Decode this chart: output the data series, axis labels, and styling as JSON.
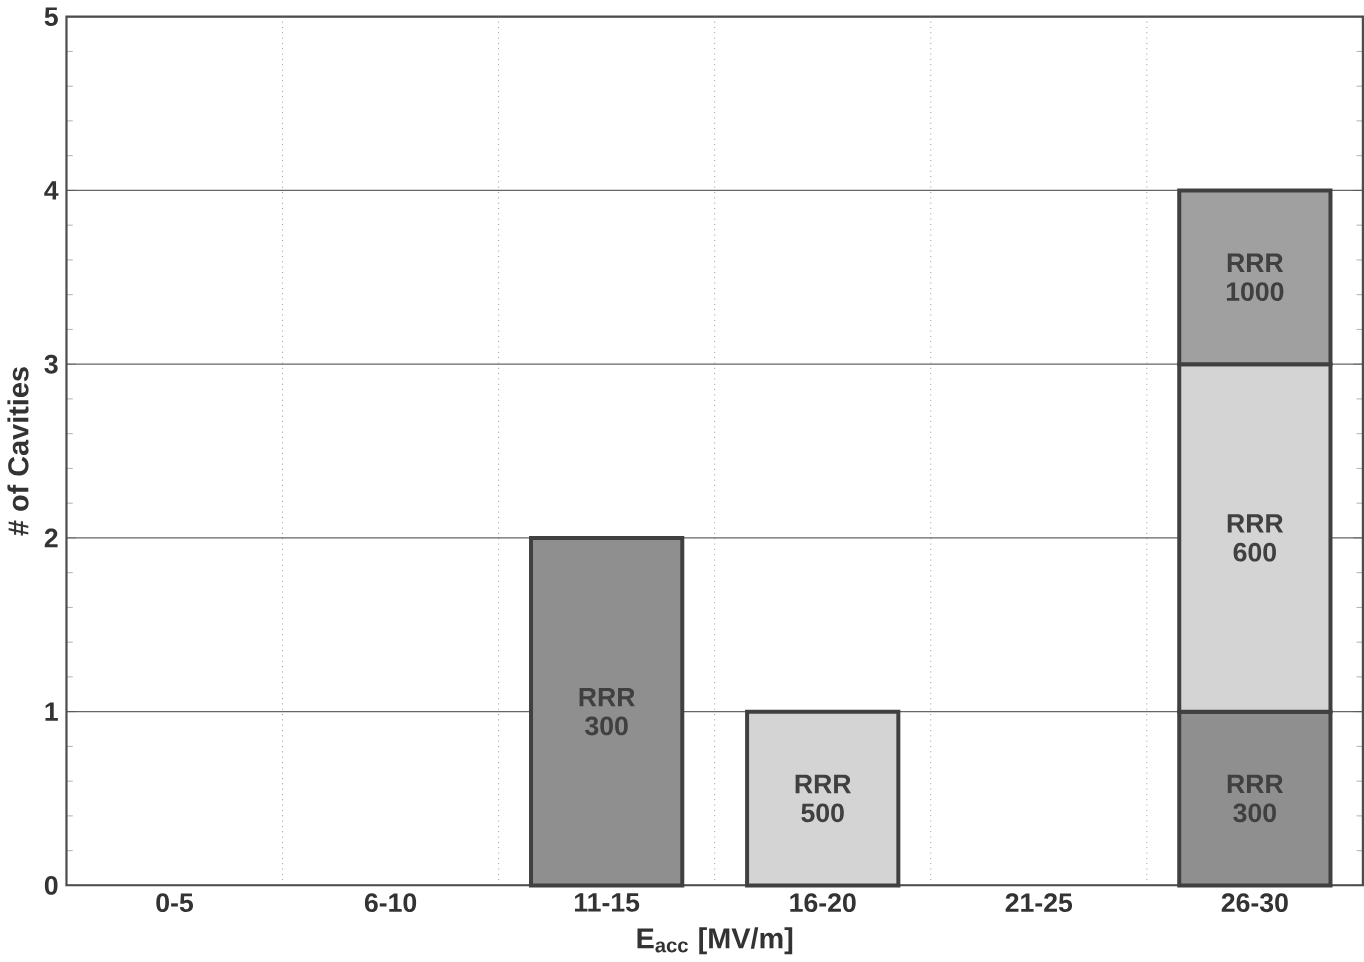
{
  "chart_data": {
    "type": "bar",
    "stacked": true,
    "xlabel": "E$_{acc}$ [MV/m]",
    "ylabel": "# of Cavities",
    "categories": [
      "0-5",
      "6-10",
      "11-15",
      "16-20",
      "21-25",
      "26-30"
    ],
    "series": [
      {
        "name": "RRR 300",
        "color": "#8f8f8f",
        "values": [
          null,
          null,
          2,
          null,
          null,
          1
        ]
      },
      {
        "name": "RRR 500",
        "color": "#d4d4d4",
        "values": [
          null,
          null,
          null,
          1,
          null,
          null
        ]
      },
      {
        "name": "RRR 600",
        "color": "#d4d4d4",
        "values": [
          null,
          null,
          null,
          null,
          null,
          2
        ]
      },
      {
        "name": "RRR 1000",
        "color": "#a0a0a0",
        "values": [
          null,
          null,
          null,
          null,
          null,
          1
        ]
      }
    ],
    "ylim": [
      0,
      5
    ],
    "yticks": [
      0,
      1,
      2,
      3,
      4,
      5
    ],
    "grid": true
  }
}
